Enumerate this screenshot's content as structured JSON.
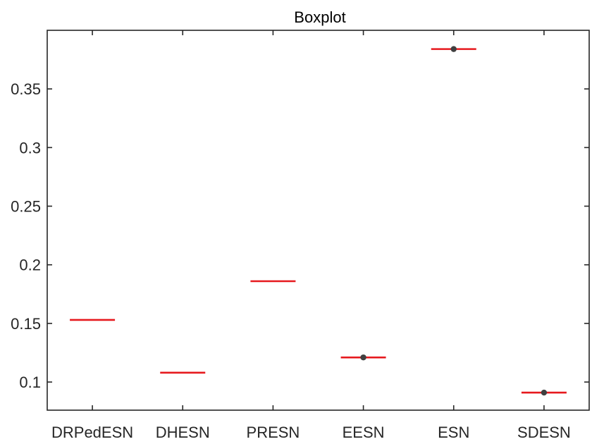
{
  "chart_data": {
    "type": "boxplot",
    "title": "Boxplot",
    "xlabel": "",
    "ylabel": "",
    "categories": [
      "DRPedESN",
      "DHESN",
      "PRESN",
      "EESN",
      "ESN",
      "SDESN"
    ],
    "medians": [
      0.153,
      0.108,
      0.186,
      0.121,
      0.384,
      0.091
    ],
    "outliers": [
      {
        "category": "EESN",
        "value": 0.121
      },
      {
        "category": "ESN",
        "value": 0.384
      },
      {
        "category": "SDESN",
        "value": 0.091
      }
    ],
    "ylim": [
      0.076,
      0.4
    ],
    "yticks": [
      0.1,
      0.15,
      0.2,
      0.25,
      0.3,
      0.35
    ],
    "ytick_labels": [
      "0.1",
      "0.15",
      "0.2",
      "0.25",
      "0.3",
      "0.35"
    ],
    "grid": false,
    "colors": {
      "median": "#e6191e",
      "outlier": "#404040",
      "axis": "#262626"
    }
  }
}
